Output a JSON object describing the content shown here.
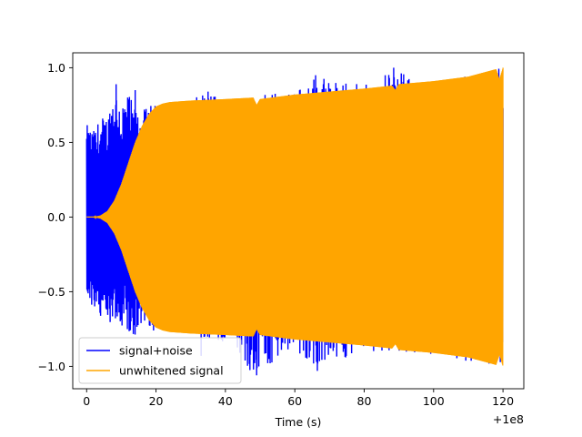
{
  "chart_data": {
    "type": "line",
    "title": "",
    "xlabel": "Time (s)",
    "ylabel": "",
    "x_offset_label": "+1e8",
    "xlim": [
      -4,
      126
    ],
    "ylim": [
      -1.15,
      1.1
    ],
    "xticks": [
      0,
      20,
      40,
      60,
      80,
      100,
      120
    ],
    "xtick_labels": [
      "0",
      "20",
      "40",
      "60",
      "80",
      "100",
      "120"
    ],
    "yticks": [
      -1.0,
      -0.5,
      0.0,
      0.5,
      1.0
    ],
    "ytick_labels": [
      "−1.0",
      "−0.5",
      "0.0",
      "0.5",
      "1.0"
    ],
    "grid": false,
    "legend_position": "lower-left",
    "series": [
      {
        "name": "signal+noise",
        "color": "#0000ff",
        "x_range": [
          0,
          120
        ],
        "envelope_x": [
          0,
          2,
          4,
          6,
          8,
          10,
          12,
          14,
          16,
          18,
          20,
          22,
          24,
          28,
          36,
          40,
          48,
          60,
          66,
          80,
          88,
          96,
          104,
          112,
          118,
          120
        ],
        "envelope_max": [
          0.62,
          0.58,
          0.67,
          0.68,
          0.89,
          0.78,
          0.83,
          0.73,
          0.71,
          0.75,
          0.75,
          0.77,
          0.77,
          0.77,
          0.84,
          0.8,
          0.82,
          0.85,
          0.95,
          0.88,
          1.0,
          0.9,
          0.93,
          0.96,
          0.99,
          1.0
        ],
        "envelope_min": [
          -0.58,
          -0.62,
          -0.71,
          -0.72,
          -0.68,
          -0.73,
          -0.78,
          -0.83,
          -0.78,
          -0.73,
          -0.78,
          -0.77,
          -0.77,
          -0.8,
          -0.82,
          -0.85,
          -1.06,
          -0.9,
          -1.01,
          -0.9,
          -0.9,
          -0.93,
          -0.95,
          -0.97,
          -1.0,
          -1.0
        ],
        "spikes": [
          [
            8.5,
            0.89
          ],
          [
            14,
            0.85
          ],
          [
            35,
            0.84
          ],
          [
            49,
            -1.06
          ],
          [
            66,
            0.95
          ],
          [
            66.5,
            -1.03
          ],
          [
            88.5,
            1.0
          ],
          [
            88.5,
            -0.86
          ],
          [
            49.5,
            0.76
          ],
          [
            33,
            -0.93
          ]
        ]
      },
      {
        "name": "unwhitened signal",
        "color": "#ffa500",
        "x_range": [
          0,
          120
        ],
        "envelope_x": [
          0,
          2,
          4,
          6,
          8,
          10,
          12,
          14,
          16,
          18,
          20,
          22,
          24,
          30,
          40,
          48,
          49,
          50,
          60,
          70,
          80,
          88,
          89,
          90,
          100,
          110,
          118,
          119,
          120
        ],
        "envelope_max": [
          0.0,
          0.0,
          0.01,
          0.04,
          0.11,
          0.22,
          0.36,
          0.5,
          0.61,
          0.69,
          0.74,
          0.76,
          0.77,
          0.78,
          0.79,
          0.8,
          0.75,
          0.79,
          0.82,
          0.84,
          0.86,
          0.88,
          0.85,
          0.89,
          0.91,
          0.94,
          0.99,
          0.92,
          1.0
        ],
        "envelope_min": [
          0.0,
          0.0,
          -0.01,
          -0.04,
          -0.11,
          -0.22,
          -0.36,
          -0.5,
          -0.61,
          -0.69,
          -0.74,
          -0.76,
          -0.77,
          -0.78,
          -0.79,
          -0.8,
          -0.75,
          -0.79,
          -0.82,
          -0.84,
          -0.86,
          -0.88,
          -0.85,
          -0.89,
          -0.91,
          -0.94,
          -0.99,
          -0.92,
          -1.0
        ]
      }
    ]
  }
}
